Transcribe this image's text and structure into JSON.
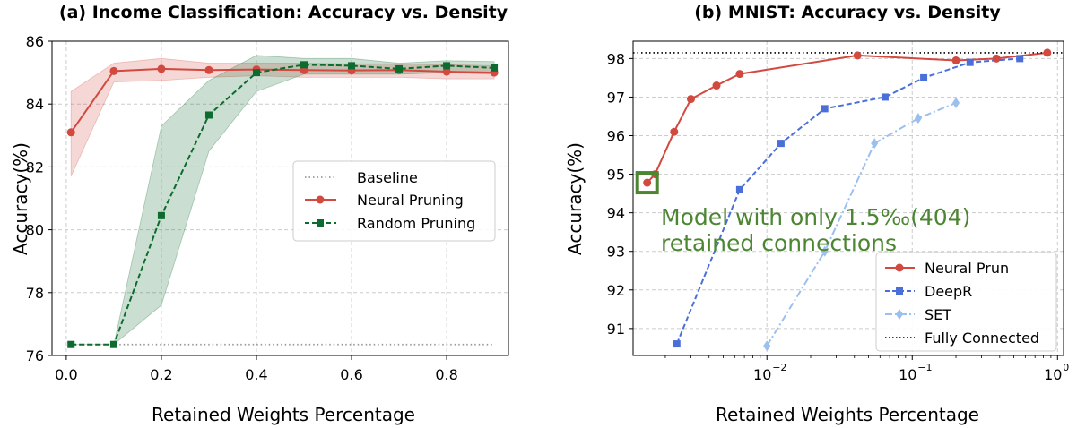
{
  "colors": {
    "neural": "#d2493f",
    "random": "#0e6b2f",
    "deepr": "#4a6fd9",
    "set": "#9cc0ee",
    "baseline": "#999999",
    "fully": "#222222",
    "annotation": "#4d8633",
    "grid": "#cccccc"
  },
  "chart_data": [
    {
      "type": "line",
      "title": "(a) Income Classification: Accuracy vs. Density",
      "xlabel": "Retained Weights Percentage",
      "ylabel": "Accuracy(%)",
      "xlim": [
        -0.03,
        0.93
      ],
      "ylim": [
        76,
        86
      ],
      "xscale": "linear",
      "grid": true,
      "legend_position": "center-right",
      "x_ticks": [
        0.0,
        0.2,
        0.4,
        0.6,
        0.8
      ],
      "x_tick_labels": [
        "0.0",
        "0.2",
        "0.4",
        "0.6",
        "0.8"
      ],
      "y_ticks": [
        76,
        78,
        80,
        82,
        84,
        86
      ],
      "y_tick_labels": [
        "76",
        "78",
        "80",
        "82",
        "84",
        "86"
      ],
      "legend": [
        "Baseline",
        "Neural Pruning",
        "Random Pruning"
      ],
      "series": [
        {
          "name": "Baseline",
          "style": "dotted",
          "color": "#999999",
          "x": [
            0.01,
            0.9
          ],
          "values": [
            76.35,
            76.35
          ]
        },
        {
          "name": "Neural Pruning",
          "style": "solid",
          "marker": "circle",
          "color": "#d2493f",
          "x": [
            0.01,
            0.1,
            0.2,
            0.3,
            0.4,
            0.5,
            0.6,
            0.7,
            0.8,
            0.9
          ],
          "values": [
            83.1,
            85.05,
            85.12,
            85.08,
            85.1,
            85.08,
            85.07,
            85.08,
            85.03,
            85.0
          ],
          "band_low": [
            81.7,
            84.7,
            84.75,
            84.85,
            84.9,
            84.85,
            84.85,
            84.85,
            84.8,
            84.8
          ],
          "band_high": [
            84.4,
            85.3,
            85.45,
            85.3,
            85.3,
            85.3,
            85.28,
            85.28,
            85.25,
            85.22
          ]
        },
        {
          "name": "Random Pruning",
          "style": "dashed",
          "marker": "square",
          "color": "#0e6b2f",
          "x": [
            0.01,
            0.1,
            0.2,
            0.3,
            0.4,
            0.5,
            0.6,
            0.7,
            0.8,
            0.9
          ],
          "values": [
            76.35,
            76.35,
            80.45,
            83.65,
            85.0,
            85.25,
            85.22,
            85.12,
            85.22,
            85.15
          ],
          "band_low": [
            76.35,
            76.35,
            77.6,
            82.5,
            84.4,
            84.95,
            84.95,
            84.95,
            85.0,
            84.95
          ],
          "band_high": [
            76.35,
            76.35,
            83.3,
            84.75,
            85.55,
            85.45,
            85.45,
            85.3,
            85.38,
            85.35
          ]
        }
      ]
    },
    {
      "type": "line",
      "title": "(b) MNIST: Accuracy vs. Density",
      "xlabel": "Retained Weights Percentage",
      "ylabel": "Accuracy(%)",
      "xlim": [
        0.0012,
        1.1
      ],
      "ylim": [
        90.3,
        98.45
      ],
      "xscale": "log",
      "grid": true,
      "legend_position": "lower-right",
      "x_ticks": [
        0.01,
        0.1,
        1.0
      ],
      "x_tick_labels": [
        "10",
        "10",
        "10"
      ],
      "x_tick_exponents": [
        "−2",
        "−1",
        "0"
      ],
      "y_ticks": [
        91,
        92,
        93,
        94,
        95,
        96,
        97,
        98
      ],
      "y_tick_labels": [
        "91",
        "92",
        "93",
        "94",
        "95",
        "96",
        "97",
        "98"
      ],
      "legend": [
        "Neural Prun",
        "DeepR",
        "SET",
        "Fully Connected"
      ],
      "annotation": {
        "text_lines": [
          "Model with only 1.5‰(404)",
          "retained connections"
        ],
        "point": {
          "x": 0.0015,
          "y": 94.78
        }
      },
      "series": [
        {
          "name": "Neural Prun",
          "style": "solid",
          "marker": "circle",
          "color": "#d2493f",
          "x": [
            0.0015,
            0.0017,
            0.0023,
            0.003,
            0.0045,
            0.0065,
            0.042,
            0.2,
            0.38,
            0.85
          ],
          "values": [
            94.78,
            95.0,
            96.1,
            96.95,
            97.3,
            97.6,
            98.08,
            97.95,
            98.0,
            98.15
          ]
        },
        {
          "name": "DeepR",
          "style": "dashed",
          "marker": "square",
          "color": "#4a6fd9",
          "x": [
            0.0024,
            0.0065,
            0.0125,
            0.025,
            0.065,
            0.12,
            0.25,
            0.55
          ],
          "values": [
            90.6,
            94.6,
            95.8,
            96.7,
            97.0,
            97.5,
            97.9,
            98.0
          ]
        },
        {
          "name": "SET",
          "style": "dashdot",
          "marker": "diamond",
          "color": "#9cc0ee",
          "x": [
            0.01,
            0.025,
            0.055,
            0.11,
            0.2
          ],
          "values": [
            90.55,
            93.0,
            95.8,
            96.45,
            96.85
          ]
        },
        {
          "name": "Fully Connected",
          "style": "dotted",
          "color": "#222222",
          "x": [
            0.0012,
            1.1
          ],
          "values": [
            98.15,
            98.15
          ]
        }
      ]
    }
  ]
}
